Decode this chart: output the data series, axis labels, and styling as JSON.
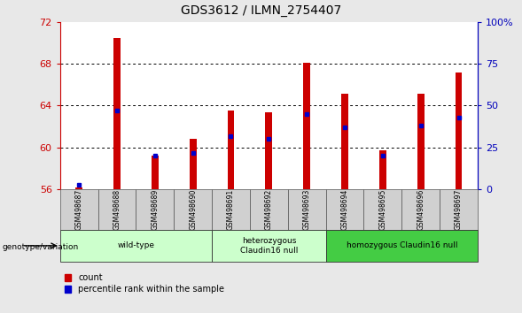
{
  "title": "GDS3612 / ILMN_2754407",
  "samples": [
    "GSM498687",
    "GSM498688",
    "GSM498689",
    "GSM498690",
    "GSM498691",
    "GSM498692",
    "GSM498693",
    "GSM498694",
    "GSM498695",
    "GSM498696",
    "GSM498697"
  ],
  "count_values": [
    56.2,
    70.5,
    59.2,
    60.8,
    63.5,
    63.4,
    68.1,
    65.1,
    59.7,
    65.1,
    67.2
  ],
  "percentile_values": [
    2.5,
    47.0,
    20.0,
    22.0,
    32.0,
    30.0,
    45.0,
    37.0,
    20.0,
    38.0,
    43.0
  ],
  "y_min": 56,
  "y_max": 72,
  "y_ticks": [
    56,
    60,
    64,
    68,
    72
  ],
  "y2_ticks": [
    0,
    25,
    50,
    75,
    100
  ],
  "y2_labels": [
    "0",
    "25",
    "50",
    "75",
    "100%"
  ],
  "red_color": "#CC0000",
  "blue_color": "#0000CC",
  "group_starts": [
    0,
    4,
    7
  ],
  "group_ends": [
    3,
    6,
    10
  ],
  "group_labels": [
    "wild-type",
    "heterozygous\nClaudin16 null",
    "homozygous Claudin16 null"
  ],
  "group_colors": [
    "#ccffcc",
    "#ccffcc",
    "#44cc44"
  ],
  "y2label_color": "#0000BB",
  "legend_items": [
    "count",
    "percentile rank within the sample"
  ],
  "genotype_label": "genotype/variation",
  "background_color": "#e8e8e8",
  "plot_bg": "#ffffff",
  "bar_width": 0.18
}
